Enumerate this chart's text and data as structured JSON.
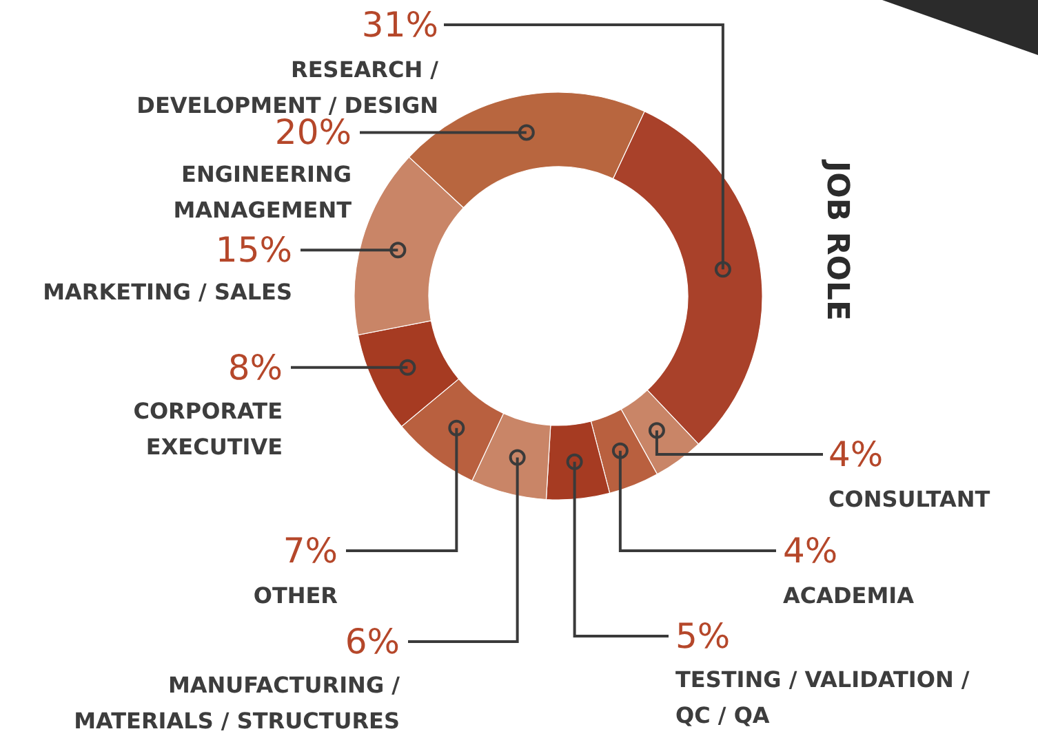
{
  "chart_data": {
    "type": "donut",
    "title": "JOB ROLE",
    "categories": [
      "RESEARCH / DEVELOPMENT / DESIGN",
      "CONSULTANT",
      "ACADEMIA",
      "TESTING / VALIDATION / QC / QA",
      "MANUFACTURING / MATERIALS / STRUCTURES",
      "OTHER",
      "CORPORATE EXECUTIVE",
      "MARKETING / SALES",
      "ENGINEERING MANAGEMENT"
    ],
    "values": [
      31,
      4,
      4,
      5,
      6,
      7,
      8,
      15,
      20
    ],
    "value_labels": [
      "31%",
      "4%",
      "4%",
      "5%",
      "6%",
      "7%",
      "8%",
      "15%",
      "20%"
    ],
    "colors": [
      "#a9412a",
      "#c98567",
      "#b9603f",
      "#a63b22",
      "#c98567",
      "#b9603f",
      "#a63b22",
      "#c98567",
      "#b8663f"
    ]
  }
}
